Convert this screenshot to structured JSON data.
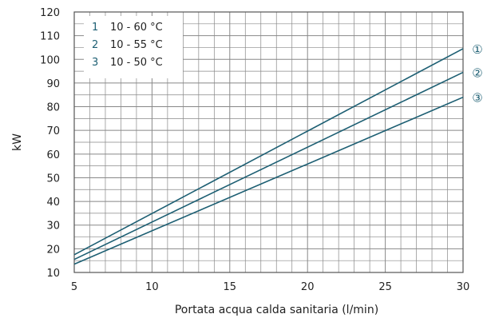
{
  "chart_data": {
    "type": "line",
    "title": "",
    "xlabel": "Portata acqua calda sanitaria (l/min)",
    "ylabel": "kW",
    "xlim": [
      5,
      30
    ],
    "ylim": [
      10,
      120
    ],
    "xticks": [
      5,
      10,
      15,
      20,
      25,
      30
    ],
    "yticks": [
      10,
      20,
      30,
      40,
      50,
      60,
      70,
      80,
      90,
      100,
      110,
      120
    ],
    "grid": true,
    "legend_position": "top-left",
    "series": [
      {
        "id": "1",
        "name": "10 - 60 °C",
        "end_label": "①",
        "x": [
          5,
          30
        ],
        "y": [
          17.5,
          104.5
        ]
      },
      {
        "id": "2",
        "name": "10 - 55 °C",
        "end_label": "②",
        "x": [
          5,
          30
        ],
        "y": [
          15.5,
          94.5
        ]
      },
      {
        "id": "3",
        "name": "10 - 50 °C",
        "end_label": "③",
        "x": [
          5,
          30
        ],
        "y": [
          13.5,
          84
        ]
      }
    ],
    "colors": {
      "line": "#1d5f73",
      "grid": "#888888",
      "axis": "#555555",
      "legend_number": "#1d5f73"
    }
  }
}
